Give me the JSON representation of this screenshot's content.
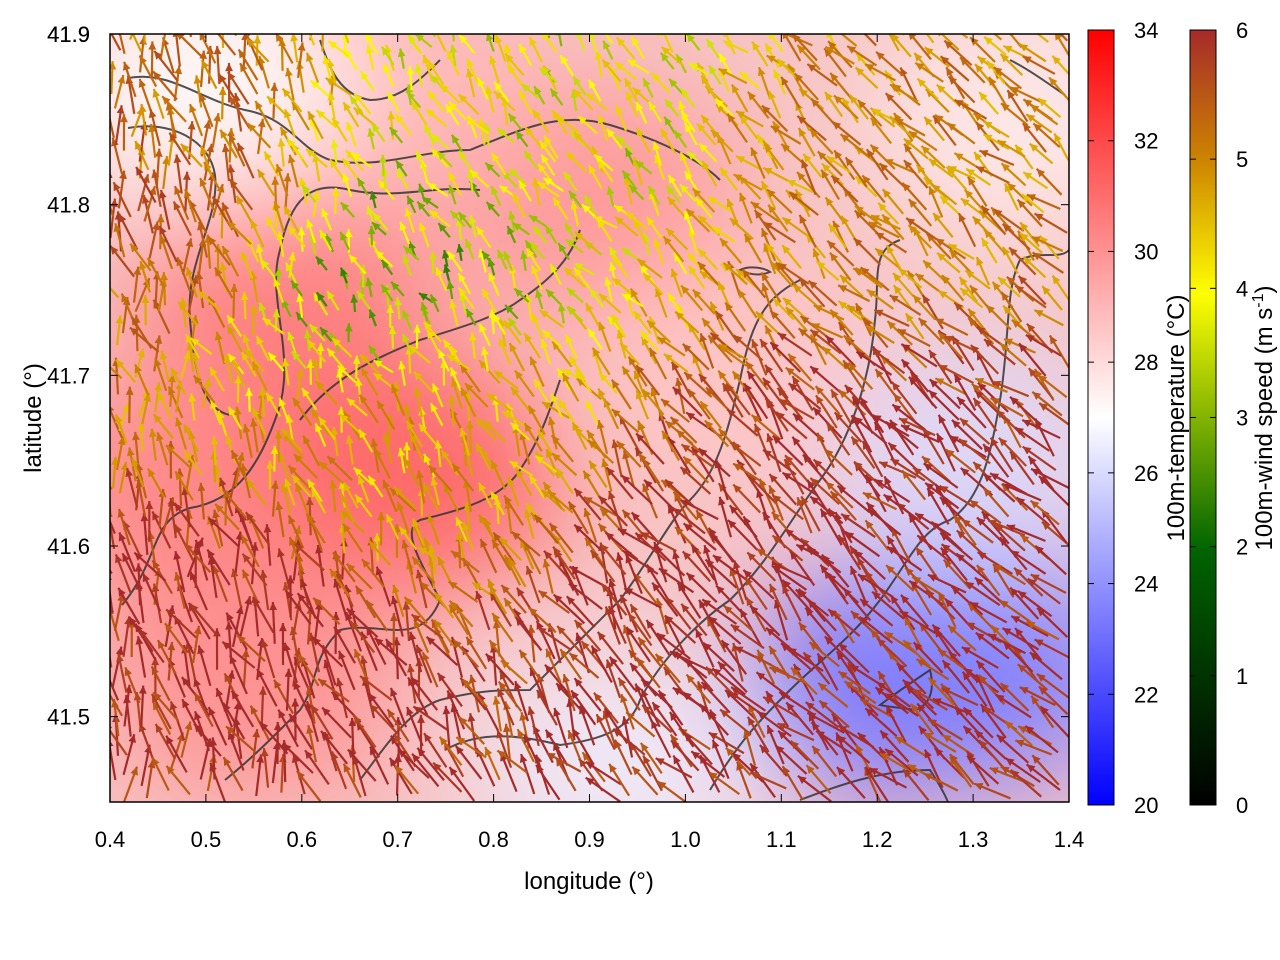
{
  "chart_data": {
    "type": "heatmap",
    "xlabel": "longitude (°)",
    "ylabel": "latitude (°)",
    "xlim": [
      0.4,
      1.4
    ],
    "ylim": [
      41.45,
      41.9
    ],
    "xticks": [
      "0.4",
      "0.5",
      "0.6",
      "0.7",
      "0.8",
      "0.9",
      "1.0",
      "1.1",
      "1.2",
      "1.3",
      "1.4"
    ],
    "yticks": [
      "41.5",
      "41.6",
      "41.7",
      "41.8",
      "41.9"
    ],
    "grid": false,
    "overlays": [
      "wind vector arrows colored by speed",
      "terrain contour lines"
    ],
    "colorbars": [
      {
        "label": "100m-temperature (°C)",
        "range": [
          20,
          34
        ],
        "ticks": [
          "20",
          "22",
          "24",
          "26",
          "28",
          "30",
          "32",
          "34"
        ],
        "colormap": [
          "#0000ff",
          "#ffffff",
          "#ff0000"
        ]
      },
      {
        "label_text": "100m-wind speed (m s",
        "label_exponent": "-1",
        "label_close": ")",
        "range": [
          0,
          6
        ],
        "ticks": [
          "0",
          "1",
          "2",
          "3",
          "4",
          "5",
          "6"
        ],
        "colormap": [
          "#000000",
          "#006400",
          "#ffff00",
          "#cd8500",
          "#a52a2a"
        ]
      }
    ],
    "temperature_regions": [
      {
        "lon": 0.47,
        "lat": 41.63,
        "value": 30.5
      },
      {
        "lon": 0.58,
        "lat": 41.75,
        "value": 30.8
      },
      {
        "lon": 0.72,
        "lat": 41.64,
        "value": 31.5
      },
      {
        "lon": 0.55,
        "lat": 41.52,
        "value": 30.2
      },
      {
        "lon": 0.9,
        "lat": 41.8,
        "value": 30.0
      },
      {
        "lon": 0.7,
        "lat": 41.87,
        "value": 29.0
      },
      {
        "lon": 1.05,
        "lat": 41.7,
        "value": 28.6
      },
      {
        "lon": 1.22,
        "lat": 41.52,
        "value": 23.0
      },
      {
        "lon": 1.32,
        "lat": 41.53,
        "value": 23.5
      },
      {
        "lon": 1.3,
        "lat": 41.65,
        "value": 26.0
      },
      {
        "lon": 0.93,
        "lat": 41.47,
        "value": 26.5
      },
      {
        "lon": 0.5,
        "lat": 41.87,
        "value": 27.0
      },
      {
        "lon": 1.35,
        "lat": 41.85,
        "value": 27.5
      }
    ],
    "wind_regions": [
      {
        "lon": 0.55,
        "lat": 41.52,
        "speed": 6.0
      },
      {
        "lon": 1.05,
        "lat": 41.55,
        "speed": 6.0
      },
      {
        "lon": 1.2,
        "lat": 41.6,
        "speed": 6.0
      },
      {
        "lon": 0.72,
        "lat": 41.66,
        "speed": 4.0
      },
      {
        "lon": 0.7,
        "lat": 41.75,
        "speed": 2.5
      },
      {
        "lon": 0.9,
        "lat": 41.86,
        "speed": 3.0
      },
      {
        "lon": 1.2,
        "lat": 41.82,
        "speed": 4.5
      },
      {
        "lon": 0.45,
        "lat": 41.8,
        "speed": 5.0
      }
    ]
  }
}
